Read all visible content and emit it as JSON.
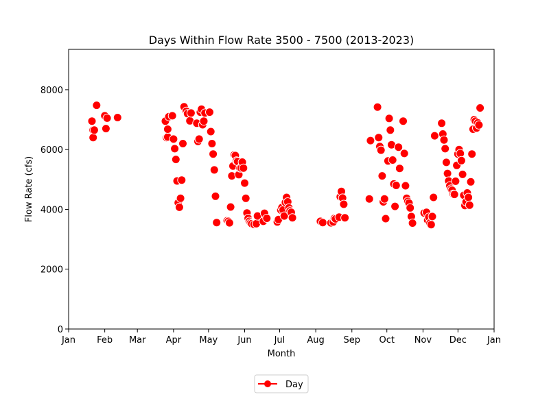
{
  "chart_data": {
    "type": "scatter",
    "title": "Days Within Flow Rate 3500 - 7500 (2013-2023)",
    "xlabel": "Month",
    "ylabel": "Flow Rate (cfs)",
    "xlim": [
      1,
      366
    ],
    "ylim": [
      0,
      9350
    ],
    "x_ticks": [
      {
        "label": "Jan",
        "value": 1
      },
      {
        "label": "Feb",
        "value": 32
      },
      {
        "label": "Mar",
        "value": 60
      },
      {
        "label": "Apr",
        "value": 91
      },
      {
        "label": "May",
        "value": 121
      },
      {
        "label": "Jun",
        "value": 152
      },
      {
        "label": "Jul",
        "value": 182
      },
      {
        "label": "Aug",
        "value": 213
      },
      {
        "label": "Sep",
        "value": 244
      },
      {
        "label": "Oct",
        "value": 274
      },
      {
        "label": "Nov",
        "value": 305
      },
      {
        "label": "Dec",
        "value": 335
      },
      {
        "label": "Jan",
        "value": 366
      }
    ],
    "y_ticks": [
      0,
      2000,
      4000,
      6000,
      8000
    ],
    "legend": {
      "label": "Day",
      "placement": "below"
    },
    "grid": false,
    "marker_color": "#ff0000",
    "series": [
      {
        "name": "Day",
        "points": [
          [
            21,
            6950
          ],
          [
            22,
            6650
          ],
          [
            22,
            6400
          ],
          [
            23,
            6650
          ],
          [
            25,
            7480
          ],
          [
            32,
            7130
          ],
          [
            33,
            6700
          ],
          [
            34,
            7050
          ],
          [
            43,
            7070
          ],
          [
            84,
            6950
          ],
          [
            85,
            6400
          ],
          [
            86,
            6420
          ],
          [
            86,
            6680
          ],
          [
            87,
            7100
          ],
          [
            90,
            7130
          ],
          [
            91,
            6350
          ],
          [
            92,
            6030
          ],
          [
            93,
            5670
          ],
          [
            94,
            4950
          ],
          [
            95,
            4220
          ],
          [
            96,
            4070
          ],
          [
            97,
            4370
          ],
          [
            98,
            4980
          ],
          [
            99,
            6200
          ],
          [
            100,
            7430
          ],
          [
            102,
            7280
          ],
          [
            103,
            7200
          ],
          [
            105,
            6960
          ],
          [
            106,
            7220
          ],
          [
            111,
            6880
          ],
          [
            112,
            6270
          ],
          [
            113,
            6350
          ],
          [
            114,
            7250
          ],
          [
            115,
            7350
          ],
          [
            116,
            6830
          ],
          [
            117,
            6950
          ],
          [
            118,
            7220
          ],
          [
            122,
            7250
          ],
          [
            123,
            6600
          ],
          [
            124,
            6200
          ],
          [
            125,
            5850
          ],
          [
            126,
            5320
          ],
          [
            127,
            4440
          ],
          [
            128,
            3560
          ],
          [
            137,
            3620
          ],
          [
            138,
            3600
          ],
          [
            139,
            3550
          ],
          [
            140,
            4080
          ],
          [
            141,
            5120
          ],
          [
            142,
            5450
          ],
          [
            143,
            5820
          ],
          [
            144,
            5800
          ],
          [
            145,
            5620
          ],
          [
            146,
            5600
          ],
          [
            147,
            5160
          ],
          [
            148,
            5380
          ],
          [
            149,
            5380
          ],
          [
            150,
            5580
          ],
          [
            151,
            5380
          ],
          [
            152,
            4880
          ],
          [
            153,
            4370
          ],
          [
            154,
            3880
          ],
          [
            155,
            3700
          ],
          [
            156,
            3600
          ],
          [
            157,
            3550
          ],
          [
            158,
            3520
          ],
          [
            160,
            3500
          ],
          [
            162,
            3520
          ],
          [
            163,
            3780
          ],
          [
            168,
            3600
          ],
          [
            169,
            3870
          ],
          [
            171,
            3700
          ],
          [
            180,
            3580
          ],
          [
            181,
            3660
          ],
          [
            183,
            3980
          ],
          [
            184,
            4060
          ],
          [
            185,
            3980
          ],
          [
            186,
            3780
          ],
          [
            187,
            4230
          ],
          [
            188,
            4400
          ],
          [
            189,
            4250
          ],
          [
            190,
            4050
          ],
          [
            191,
            3950
          ],
          [
            192,
            3900
          ],
          [
            193,
            3720
          ],
          [
            217,
            3600
          ],
          [
            219,
            3560
          ],
          [
            226,
            3550
          ],
          [
            228,
            3580
          ],
          [
            229,
            3700
          ],
          [
            230,
            3680
          ],
          [
            233,
            3740
          ],
          [
            234,
            4420
          ],
          [
            235,
            4600
          ],
          [
            236,
            4380
          ],
          [
            237,
            4170
          ],
          [
            238,
            3720
          ],
          [
            259,
            4350
          ],
          [
            260,
            6300
          ],
          [
            266,
            7420
          ],
          [
            267,
            6400
          ],
          [
            268,
            6100
          ],
          [
            269,
            5980
          ],
          [
            270,
            5120
          ],
          [
            271,
            4250
          ],
          [
            272,
            4350
          ],
          [
            273,
            3690
          ],
          [
            275,
            5620
          ],
          [
            276,
            7040
          ],
          [
            277,
            6650
          ],
          [
            278,
            6160
          ],
          [
            279,
            5650
          ],
          [
            280,
            4850
          ],
          [
            281,
            4100
          ],
          [
            282,
            4800
          ],
          [
            284,
            6080
          ],
          [
            285,
            5370
          ],
          [
            288,
            6950
          ],
          [
            289,
            5870
          ],
          [
            290,
            4790
          ],
          [
            291,
            4370
          ],
          [
            292,
            4270
          ],
          [
            293,
            4210
          ],
          [
            294,
            4050
          ],
          [
            295,
            3760
          ],
          [
            296,
            3540
          ],
          [
            306,
            3880
          ],
          [
            308,
            3900
          ],
          [
            309,
            3640
          ],
          [
            310,
            3740
          ],
          [
            311,
            3540
          ],
          [
            312,
            3490
          ],
          [
            313,
            3760
          ],
          [
            314,
            4400
          ],
          [
            315,
            6460
          ],
          [
            321,
            6880
          ],
          [
            322,
            6520
          ],
          [
            323,
            6320
          ],
          [
            324,
            6030
          ],
          [
            325,
            5570
          ],
          [
            326,
            5200
          ],
          [
            327,
            4950
          ],
          [
            328,
            4790
          ],
          [
            329,
            4680
          ],
          [
            330,
            4640
          ],
          [
            331,
            4510
          ],
          [
            332,
            4500
          ],
          [
            333,
            4940
          ],
          [
            334,
            5470
          ],
          [
            335,
            5850
          ],
          [
            336,
            6000
          ],
          [
            337,
            5870
          ],
          [
            338,
            5630
          ],
          [
            339,
            5170
          ],
          [
            340,
            4470
          ],
          [
            341,
            4130
          ],
          [
            342,
            4250
          ],
          [
            343,
            4550
          ],
          [
            344,
            4400
          ],
          [
            345,
            4140
          ],
          [
            346,
            4920
          ],
          [
            347,
            5850
          ],
          [
            348,
            6680
          ],
          [
            349,
            7000
          ],
          [
            350,
            6950
          ],
          [
            351,
            6720
          ],
          [
            352,
            6890
          ],
          [
            353,
            6820
          ],
          [
            354,
            7390
          ]
        ]
      }
    ]
  }
}
